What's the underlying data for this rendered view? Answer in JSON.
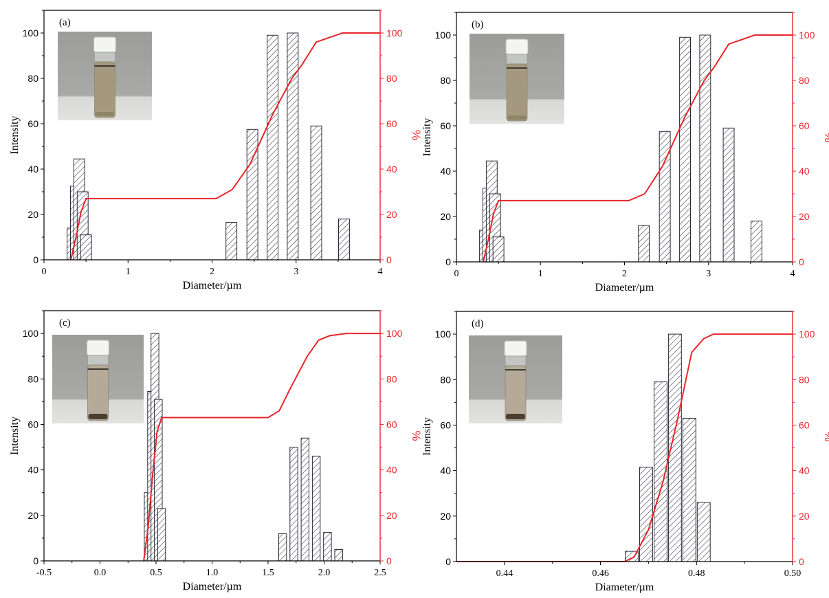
{
  "colors": {
    "axis": "#000000",
    "bar_stroke": "#2a2a3a",
    "curve": "#e8262b",
    "photo_bg": "#a7a7a5"
  },
  "chart_data": [
    {
      "type": "bar",
      "panel_label": "(a)",
      "xlabel": "Diameter/µm",
      "ylabel": "Intensity",
      "y2label": "%",
      "xlim": [
        0,
        4
      ],
      "ylim": [
        0,
        110
      ],
      "y2lim": [
        0,
        110
      ],
      "xticks": [
        0,
        1,
        2,
        3,
        4
      ],
      "xtick_labels": [
        "0",
        "1",
        "2",
        "3",
        "4"
      ],
      "yticks": [
        0,
        20,
        40,
        60,
        80,
        100
      ],
      "y2ticks": [
        0,
        20,
        40,
        60,
        80,
        100
      ],
      "bar_width": 0.13,
      "bars": {
        "x": [
          0.34,
          0.38,
          0.42,
          0.46,
          0.5,
          2.23,
          2.48,
          2.72,
          2.96,
          3.24,
          3.57
        ],
        "values": [
          14,
          32.5,
          44.5,
          30,
          11,
          16.5,
          57.5,
          99,
          100,
          59,
          18
        ]
      },
      "curve": {
        "x": [
          0.32,
          0.38,
          0.44,
          0.5,
          1.0,
          2.05,
          2.24,
          2.45,
          2.72,
          2.95,
          3.07,
          3.24,
          3.55,
          4.0
        ],
        "y": [
          0,
          10,
          21,
          27,
          27,
          27,
          31,
          42,
          64,
          80,
          86,
          96,
          100,
          100
        ]
      },
      "inset": "vial photo with brownish turbid liquid"
    },
    {
      "type": "bar",
      "panel_label": "(b)",
      "xlabel": "Diameter/µm",
      "ylabel": "Intensity",
      "y2label": "%",
      "xlim": [
        0,
        4
      ],
      "ylim": [
        0,
        110
      ],
      "y2lim": [
        0,
        110
      ],
      "xticks": [
        0,
        1,
        2,
        3,
        4
      ],
      "xtick_labels": [
        "0",
        "1",
        "2",
        "3",
        "4"
      ],
      "yticks": [
        0,
        20,
        40,
        60,
        80,
        100
      ],
      "y2ticks": [
        0,
        20,
        40,
        60,
        80,
        100
      ],
      "bar_width": 0.13,
      "bars": {
        "x": [
          0.34,
          0.38,
          0.42,
          0.46,
          0.5,
          2.23,
          2.48,
          2.72,
          2.96,
          3.24,
          3.57
        ],
        "values": [
          14,
          32.5,
          44.5,
          30,
          11,
          16,
          57.5,
          99,
          100,
          59,
          18
        ]
      },
      "curve": {
        "x": [
          0.32,
          0.38,
          0.44,
          0.5,
          1.0,
          2.05,
          2.24,
          2.45,
          2.72,
          2.95,
          3.07,
          3.24,
          3.55,
          4.0
        ],
        "y": [
          0,
          10,
          21,
          27,
          27,
          27,
          30,
          42,
          64,
          80,
          86,
          96,
          100,
          100
        ]
      },
      "inset": "vial photo with brownish turbid liquid"
    },
    {
      "type": "bar",
      "panel_label": "(c)",
      "xlabel": "Diameter/µm",
      "ylabel": "Intensity",
      "y2label": "%",
      "xlim": [
        -0.5,
        2.5
      ],
      "ylim": [
        0,
        110
      ],
      "y2lim": [
        0,
        110
      ],
      "xticks": [
        -0.5,
        0,
        0.5,
        1,
        1.5,
        2,
        2.5
      ],
      "xtick_labels": [
        "-0.5",
        "0.0",
        "0.5",
        "1.0",
        "1.5",
        "2.0",
        "2.5"
      ],
      "yticks": [
        0,
        20,
        40,
        60,
        80,
        100
      ],
      "y2ticks": [
        0,
        20,
        40,
        60,
        80,
        100
      ],
      "bar_width": 0.07,
      "bars": {
        "x": [
          0.43,
          0.46,
          0.49,
          0.52,
          0.55,
          1.63,
          1.73,
          1.83,
          1.93,
          2.03,
          2.13,
          2.23
        ],
        "values": [
          30,
          74.5,
          100,
          71,
          23,
          12,
          50,
          54,
          46,
          12.5,
          5,
          0
        ]
      },
      "curve": {
        "x": [
          0.39,
          0.43,
          0.47,
          0.51,
          0.55,
          1.0,
          1.5,
          1.6,
          1.7,
          1.85,
          1.95,
          2.05,
          2.2,
          2.5
        ],
        "y": [
          0,
          15,
          38,
          57,
          63,
          63,
          63,
          66,
          76,
          90,
          97,
          99,
          100,
          100
        ]
      },
      "inset": "vial photo with sediment at bottom"
    },
    {
      "type": "bar",
      "panel_label": "(d)",
      "xlabel": "Diameter/µm",
      "ylabel": "Intensity",
      "y2label": "%",
      "xlim": [
        0.43,
        0.5
      ],
      "ylim": [
        0,
        110
      ],
      "y2lim": [
        0,
        110
      ],
      "xticks": [
        0.44,
        0.46,
        0.48,
        0.5
      ],
      "xtick_labels": [
        "0.44",
        "0.46",
        "0.48",
        "0.50"
      ],
      "yticks": [
        0,
        20,
        40,
        60,
        80,
        100
      ],
      "y2ticks": [
        0,
        20,
        40,
        60,
        80,
        100
      ],
      "bar_width": 0.0027,
      "bars": {
        "x": [
          0.4665,
          0.4695,
          0.4725,
          0.4755,
          0.4785,
          0.4815
        ],
        "values": [
          4.5,
          41.5,
          79,
          100,
          63,
          26
        ]
      },
      "curve": {
        "x": [
          0.43,
          0.465,
          0.467,
          0.47,
          0.473,
          0.476,
          0.479,
          0.4815,
          0.4835,
          0.5
        ],
        "y": [
          0,
          0,
          2,
          14,
          35,
          62,
          92,
          98,
          100,
          100
        ]
      },
      "inset": "vial photo with sediment at bottom"
    }
  ]
}
